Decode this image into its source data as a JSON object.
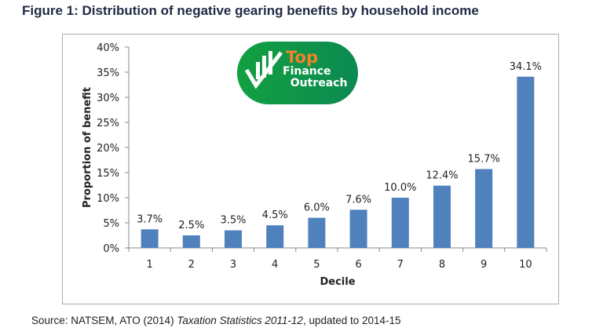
{
  "title": "Figure 1: Distribution of negative gearing benefits by household income",
  "logo": {
    "line1": "Top",
    "line2": "Finance",
    "line3": "Outreach"
  },
  "source": {
    "prefix": "Source: NATSEM, ATO (2014) ",
    "italic": "Taxation Statistics 2011-12",
    "suffix": ", updated to 2014-15"
  },
  "chart_data": {
    "type": "bar",
    "title": "Figure 1: Distribution of negative gearing benefits by household income",
    "xlabel": "Decile",
    "ylabel": "Proportion of benefit",
    "categories": [
      "1",
      "2",
      "3",
      "4",
      "5",
      "6",
      "7",
      "8",
      "9",
      "10"
    ],
    "values": [
      3.7,
      2.5,
      3.5,
      4.5,
      6.0,
      7.6,
      10.0,
      12.4,
      15.7,
      34.1
    ],
    "data_labels": [
      "3.7%",
      "2.5%",
      "3.5%",
      "4.5%",
      "6.0%",
      "7.6%",
      "10.0%",
      "12.4%",
      "15.7%",
      "34.1%"
    ],
    "yticks": [
      "0%",
      "5%",
      "10%",
      "15%",
      "20%",
      "25%",
      "30%",
      "35%",
      "40%"
    ],
    "ylim": [
      0,
      40
    ],
    "grid": false,
    "bar_color": "#4f81bd"
  }
}
